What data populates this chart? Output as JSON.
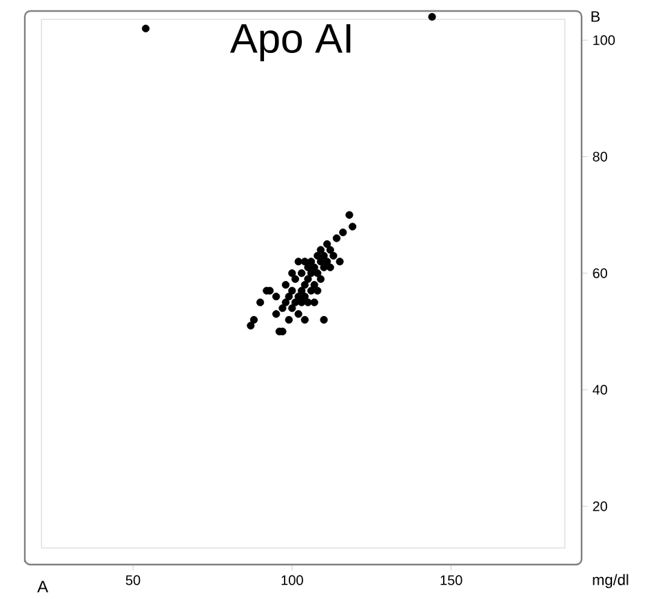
{
  "chart_data": {
    "type": "scatter",
    "title": "Apo AI",
    "xlabel": "mg/dl",
    "annotations": [
      "A",
      "B"
    ],
    "x": [
      54,
      144,
      87,
      88,
      90,
      92,
      93,
      95,
      95,
      96,
      97,
      97,
      98,
      98,
      99,
      99,
      100,
      100,
      101,
      101,
      102,
      102,
      103,
      103,
      103,
      104,
      104,
      104,
      105,
      105,
      105,
      106,
      106,
      106,
      107,
      107,
      107,
      108,
      108,
      108,
      109,
      109,
      109,
      110,
      110,
      110,
      111,
      111,
      112,
      112,
      113,
      114,
      115,
      116,
      118,
      119,
      104,
      100,
      102
    ],
    "values": [
      102,
      104,
      51,
      52,
      55,
      57,
      57,
      56,
      53,
      50,
      50,
      54,
      55,
      58,
      56,
      52,
      57,
      54,
      55,
      59,
      56,
      53,
      57,
      55,
      60,
      58,
      56,
      52,
      59,
      61,
      55,
      57,
      60,
      62,
      58,
      61,
      55,
      60,
      63,
      57,
      62,
      59,
      64,
      61,
      63,
      52,
      62,
      65,
      64,
      61,
      63,
      66,
      62,
      67,
      70,
      68,
      62,
      60,
      62
    ],
    "color": "#000000",
    "grid": false,
    "xlim": [
      16,
      191
    ],
    "ylim": [
      10,
      105
    ],
    "xticks": [
      50,
      100,
      150
    ],
    "yticks": [
      20,
      40,
      60,
      80,
      100
    ]
  }
}
